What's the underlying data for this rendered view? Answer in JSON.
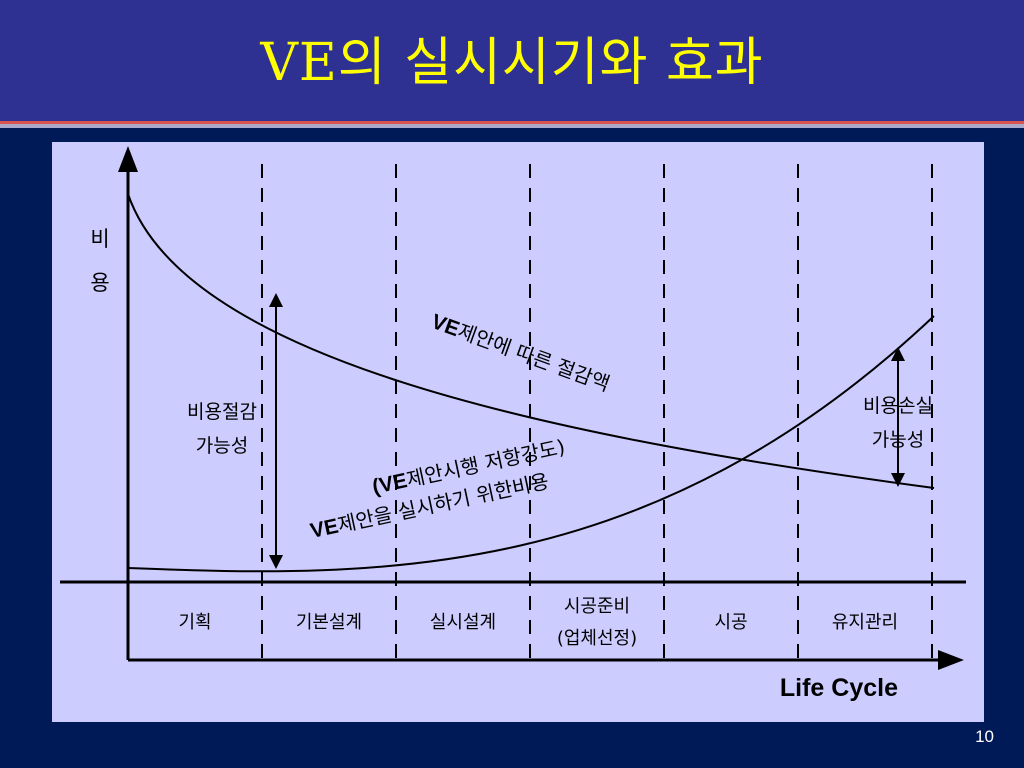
{
  "slide": {
    "title": "VE의 실시시기와 효과",
    "page_number": "10"
  },
  "diagram": {
    "y_axis_label_line1": "비",
    "y_axis_label_line2": "용",
    "x_axis_label": "Life Cycle",
    "phases": [
      {
        "label": "기획"
      },
      {
        "label": "기본설계"
      },
      {
        "label": "실시설계"
      },
      {
        "label": "시공준비",
        "label_line2": "(업체선정)"
      },
      {
        "label": "시공"
      },
      {
        "label": "유지관리"
      }
    ],
    "savings_curve": {
      "label_bold": "VE",
      "label_rest": "제안에 따른 절감액"
    },
    "cost_curve": {
      "label_line1_open": "(",
      "label_line1_bold": "VE",
      "label_line1_rest": "제안시행 저항강도)",
      "label_line2_bold": "VE",
      "label_line2_rest": "제안을 실시하기 위한비용"
    },
    "savings_potential": {
      "line1": "비용절감",
      "line2": "가능성"
    },
    "loss_potential": {
      "line1": "비용손실",
      "line2": "가능성"
    }
  }
}
